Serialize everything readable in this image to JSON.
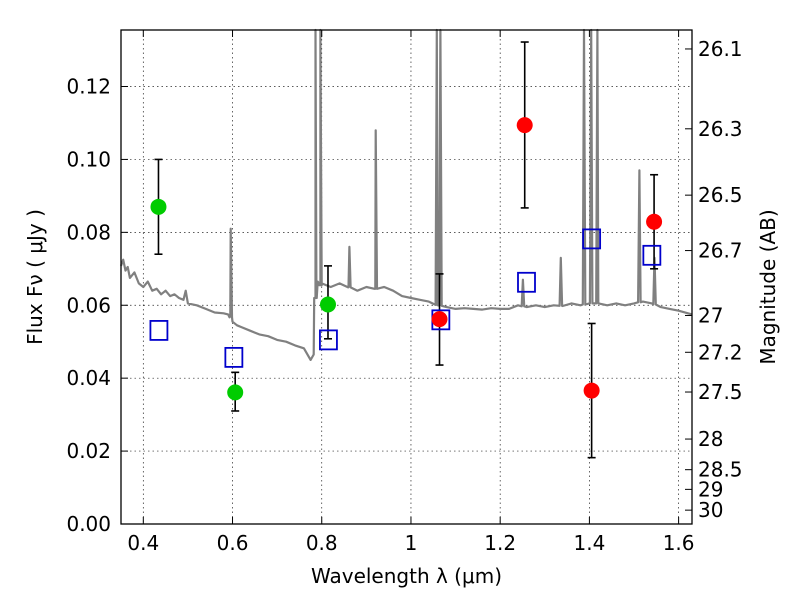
{
  "chart_data": {
    "type": "scatter",
    "title": "",
    "xlabel": "Wavelength  λ (μm)",
    "ylabel": "Flux  Fν  ( μJy )",
    "ylabel_right": "Magnitude (AB)",
    "xlim": [
      0.35,
      1.63
    ],
    "ylim": [
      0.0,
      0.1355
    ],
    "grid": true,
    "legend": "none",
    "x_ticks": [
      0.4,
      0.6,
      0.8,
      1.0,
      1.2,
      1.4,
      1.6
    ],
    "x_tick_labels": [
      "0.4",
      "0.6",
      "0.8",
      "1",
      "1.2",
      "1.4",
      "1.6"
    ],
    "y_ticks": [
      0.0,
      0.02,
      0.04,
      0.06,
      0.08,
      0.1,
      0.12
    ],
    "y_tick_labels": [
      "0.00",
      "0.02",
      "0.04",
      "0.06",
      "0.08",
      "0.10",
      "0.12"
    ],
    "mag_ticks": [
      {
        "label": "26.1",
        "flux": 0.1303
      },
      {
        "label": "26.3",
        "flux": 0.1084
      },
      {
        "label": "26.5",
        "flux": 0.0902
      },
      {
        "label": "26.7",
        "flux": 0.075
      },
      {
        "label": "27",
        "flux": 0.0572
      },
      {
        "label": "27.2",
        "flux": 0.0471
      },
      {
        "label": "27.5",
        "flux": 0.0362
      },
      {
        "label": "28",
        "flux": 0.0233
      },
      {
        "label": "28.5",
        "flux": 0.0149
      },
      {
        "label": "29",
        "flux": 0.0095
      },
      {
        "label": "30",
        "flux": 0.0038
      }
    ],
    "series": [
      {
        "kind": "model-spectrum",
        "color": "#808080",
        "x": [
          0.35,
          0.355,
          0.36,
          0.365,
          0.37,
          0.38,
          0.39,
          0.4,
          0.41,
          0.42,
          0.43,
          0.44,
          0.45,
          0.46,
          0.47,
          0.48,
          0.49,
          0.495,
          0.5,
          0.52,
          0.54,
          0.56,
          0.58,
          0.59,
          0.595,
          0.6,
          0.61,
          0.62,
          0.64,
          0.66,
          0.68,
          0.7,
          0.72,
          0.74,
          0.76,
          0.775,
          0.782,
          0.786,
          0.788,
          0.791,
          0.794,
          0.797,
          0.8,
          0.82,
          0.84,
          0.86,
          0.88,
          0.9,
          0.92,
          0.94,
          0.96,
          0.98,
          1.0,
          1.02,
          1.04,
          1.06,
          1.08,
          1.1,
          1.12,
          1.14,
          1.16,
          1.18,
          1.2,
          1.22,
          1.24,
          1.26,
          1.28,
          1.3,
          1.32,
          1.34,
          1.36,
          1.38,
          1.4,
          1.42,
          1.44,
          1.46,
          1.48,
          1.5,
          1.52,
          1.54,
          1.56,
          1.58,
          1.6,
          1.63
        ],
        "y": [
          0.0708,
          0.0725,
          0.0695,
          0.0705,
          0.0675,
          0.069,
          0.066,
          0.065,
          0.0665,
          0.064,
          0.0645,
          0.063,
          0.064,
          0.0625,
          0.063,
          0.062,
          0.0615,
          0.064,
          0.0605,
          0.06,
          0.059,
          0.058,
          0.0578,
          0.0575,
          0.057,
          0.0555,
          0.0545,
          0.054,
          0.053,
          0.052,
          0.0515,
          0.0505,
          0.05,
          0.049,
          0.0482,
          0.045,
          0.0465,
          0.062,
          0.065,
          0.0665,
          0.066,
          0.0655,
          0.066,
          0.065,
          0.066,
          0.065,
          0.064,
          0.065,
          0.0645,
          0.065,
          0.064,
          0.0625,
          0.062,
          0.0615,
          0.061,
          0.06,
          0.0595,
          0.059,
          0.0592,
          0.059,
          0.0588,
          0.0592,
          0.059,
          0.059,
          0.06,
          0.0595,
          0.06,
          0.0595,
          0.06,
          0.0598,
          0.0605,
          0.06,
          0.0605,
          0.0605,
          0.06,
          0.0605,
          0.06,
          0.0605,
          0.061,
          0.0605,
          0.0595,
          0.059,
          0.0585,
          0.0575
        ],
        "lines": [
          {
            "x": 0.596,
            "peak": 0.081
          },
          {
            "x": 0.786,
            "peak": 0.136
          },
          {
            "x": 0.797,
            "peak": 0.136
          },
          {
            "x": 0.862,
            "peak": 0.076
          },
          {
            "x": 0.921,
            "peak": 0.108
          },
          {
            "x": 1.058,
            "peak": 0.136
          },
          {
            "x": 1.066,
            "peak": 0.136
          },
          {
            "x": 1.251,
            "peak": 0.067
          },
          {
            "x": 1.336,
            "peak": 0.073
          },
          {
            "x": 1.388,
            "peak": 0.136
          },
          {
            "x": 1.404,
            "peak": 0.136
          },
          {
            "x": 1.418,
            "peak": 0.136
          },
          {
            "x": 1.512,
            "peak": 0.097
          },
          {
            "x": 1.546,
            "peak": 0.073
          }
        ]
      },
      {
        "kind": "green-photometry",
        "color": "#00cc00",
        "x": [
          0.434,
          0.606,
          0.814
        ],
        "y": [
          0.087,
          0.0361,
          0.0602
        ],
        "err_low": [
          0.074,
          0.031,
          0.0508
        ],
        "err_high": [
          0.1,
          0.0416,
          0.0708
        ]
      },
      {
        "kind": "red-photometry",
        "color": "#ff0000",
        "x": [
          1.064,
          1.255,
          1.405,
          1.545
        ],
        "y": [
          0.0562,
          0.1094,
          0.0366,
          0.0829
        ],
        "err_low": [
          0.0436,
          0.0867,
          0.0182,
          0.07
        ],
        "err_high": [
          0.0686,
          0.1322,
          0.055,
          0.0958
        ]
      },
      {
        "kind": "model-bandpass-flux",
        "color": "#0000cc",
        "x": [
          0.435,
          0.603,
          0.815,
          1.067,
          1.259,
          1.405,
          1.54
        ],
        "y": [
          0.0531,
          0.0457,
          0.0505,
          0.056,
          0.0663,
          0.0782,
          0.0737
        ]
      }
    ]
  }
}
